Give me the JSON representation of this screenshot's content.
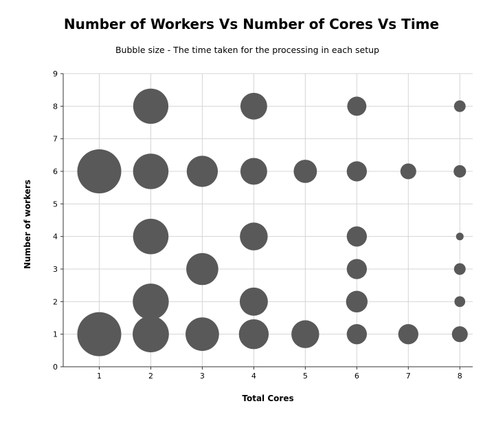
{
  "chart_data": {
    "type": "scatter",
    "title": "Number of Workers Vs Number of Cores Vs Time",
    "subtitle": "Bubble size - The time taken for the processing in each setup",
    "xlabel": "Total  Cores",
    "ylabel": "Number of workers",
    "xlim": [
      0.3,
      8.25
    ],
    "ylim": [
      0,
      9
    ],
    "x_ticks": [
      1,
      2,
      3,
      4,
      5,
      6,
      7,
      8
    ],
    "y_ticks": [
      0,
      1,
      2,
      3,
      4,
      5,
      6,
      7,
      8,
      9
    ],
    "grid": true,
    "bubble_color": "#595959",
    "series": [
      {
        "points": [
          {
            "x": 1,
            "y": 1,
            "size": 100
          },
          {
            "x": 2,
            "y": 1,
            "size": 68
          },
          {
            "x": 3,
            "y": 1,
            "size": 58
          },
          {
            "x": 4,
            "y": 1,
            "size": 46
          },
          {
            "x": 5,
            "y": 1,
            "size": 40
          },
          {
            "x": 6,
            "y": 1,
            "size": 21
          },
          {
            "x": 7,
            "y": 1,
            "size": 21
          },
          {
            "x": 8,
            "y": 1,
            "size": 13
          },
          {
            "x": 2,
            "y": 2,
            "size": 67
          },
          {
            "x": 4,
            "y": 2,
            "size": 41
          },
          {
            "x": 6,
            "y": 2,
            "size": 24
          },
          {
            "x": 8,
            "y": 2,
            "size": 6
          },
          {
            "x": 3,
            "y": 3,
            "size": 53
          },
          {
            "x": 6,
            "y": 3,
            "size": 21
          },
          {
            "x": 8,
            "y": 3,
            "size": 7
          },
          {
            "x": 2,
            "y": 4,
            "size": 65
          },
          {
            "x": 4,
            "y": 4,
            "size": 40
          },
          {
            "x": 6,
            "y": 4,
            "size": 21
          },
          {
            "x": 8,
            "y": 4,
            "size": 3
          },
          {
            "x": 1,
            "y": 6,
            "size": 100
          },
          {
            "x": 2,
            "y": 6,
            "size": 65
          },
          {
            "x": 3,
            "y": 6,
            "size": 50
          },
          {
            "x": 4,
            "y": 6,
            "size": 37
          },
          {
            "x": 5,
            "y": 6,
            "size": 28
          },
          {
            "x": 6,
            "y": 6,
            "size": 21
          },
          {
            "x": 7,
            "y": 6,
            "size": 13
          },
          {
            "x": 8,
            "y": 6,
            "size": 8
          },
          {
            "x": 2,
            "y": 8,
            "size": 64
          },
          {
            "x": 4,
            "y": 8,
            "size": 37
          },
          {
            "x": 6,
            "y": 8,
            "size": 19
          },
          {
            "x": 8,
            "y": 8,
            "size": 7
          }
        ]
      }
    ]
  }
}
